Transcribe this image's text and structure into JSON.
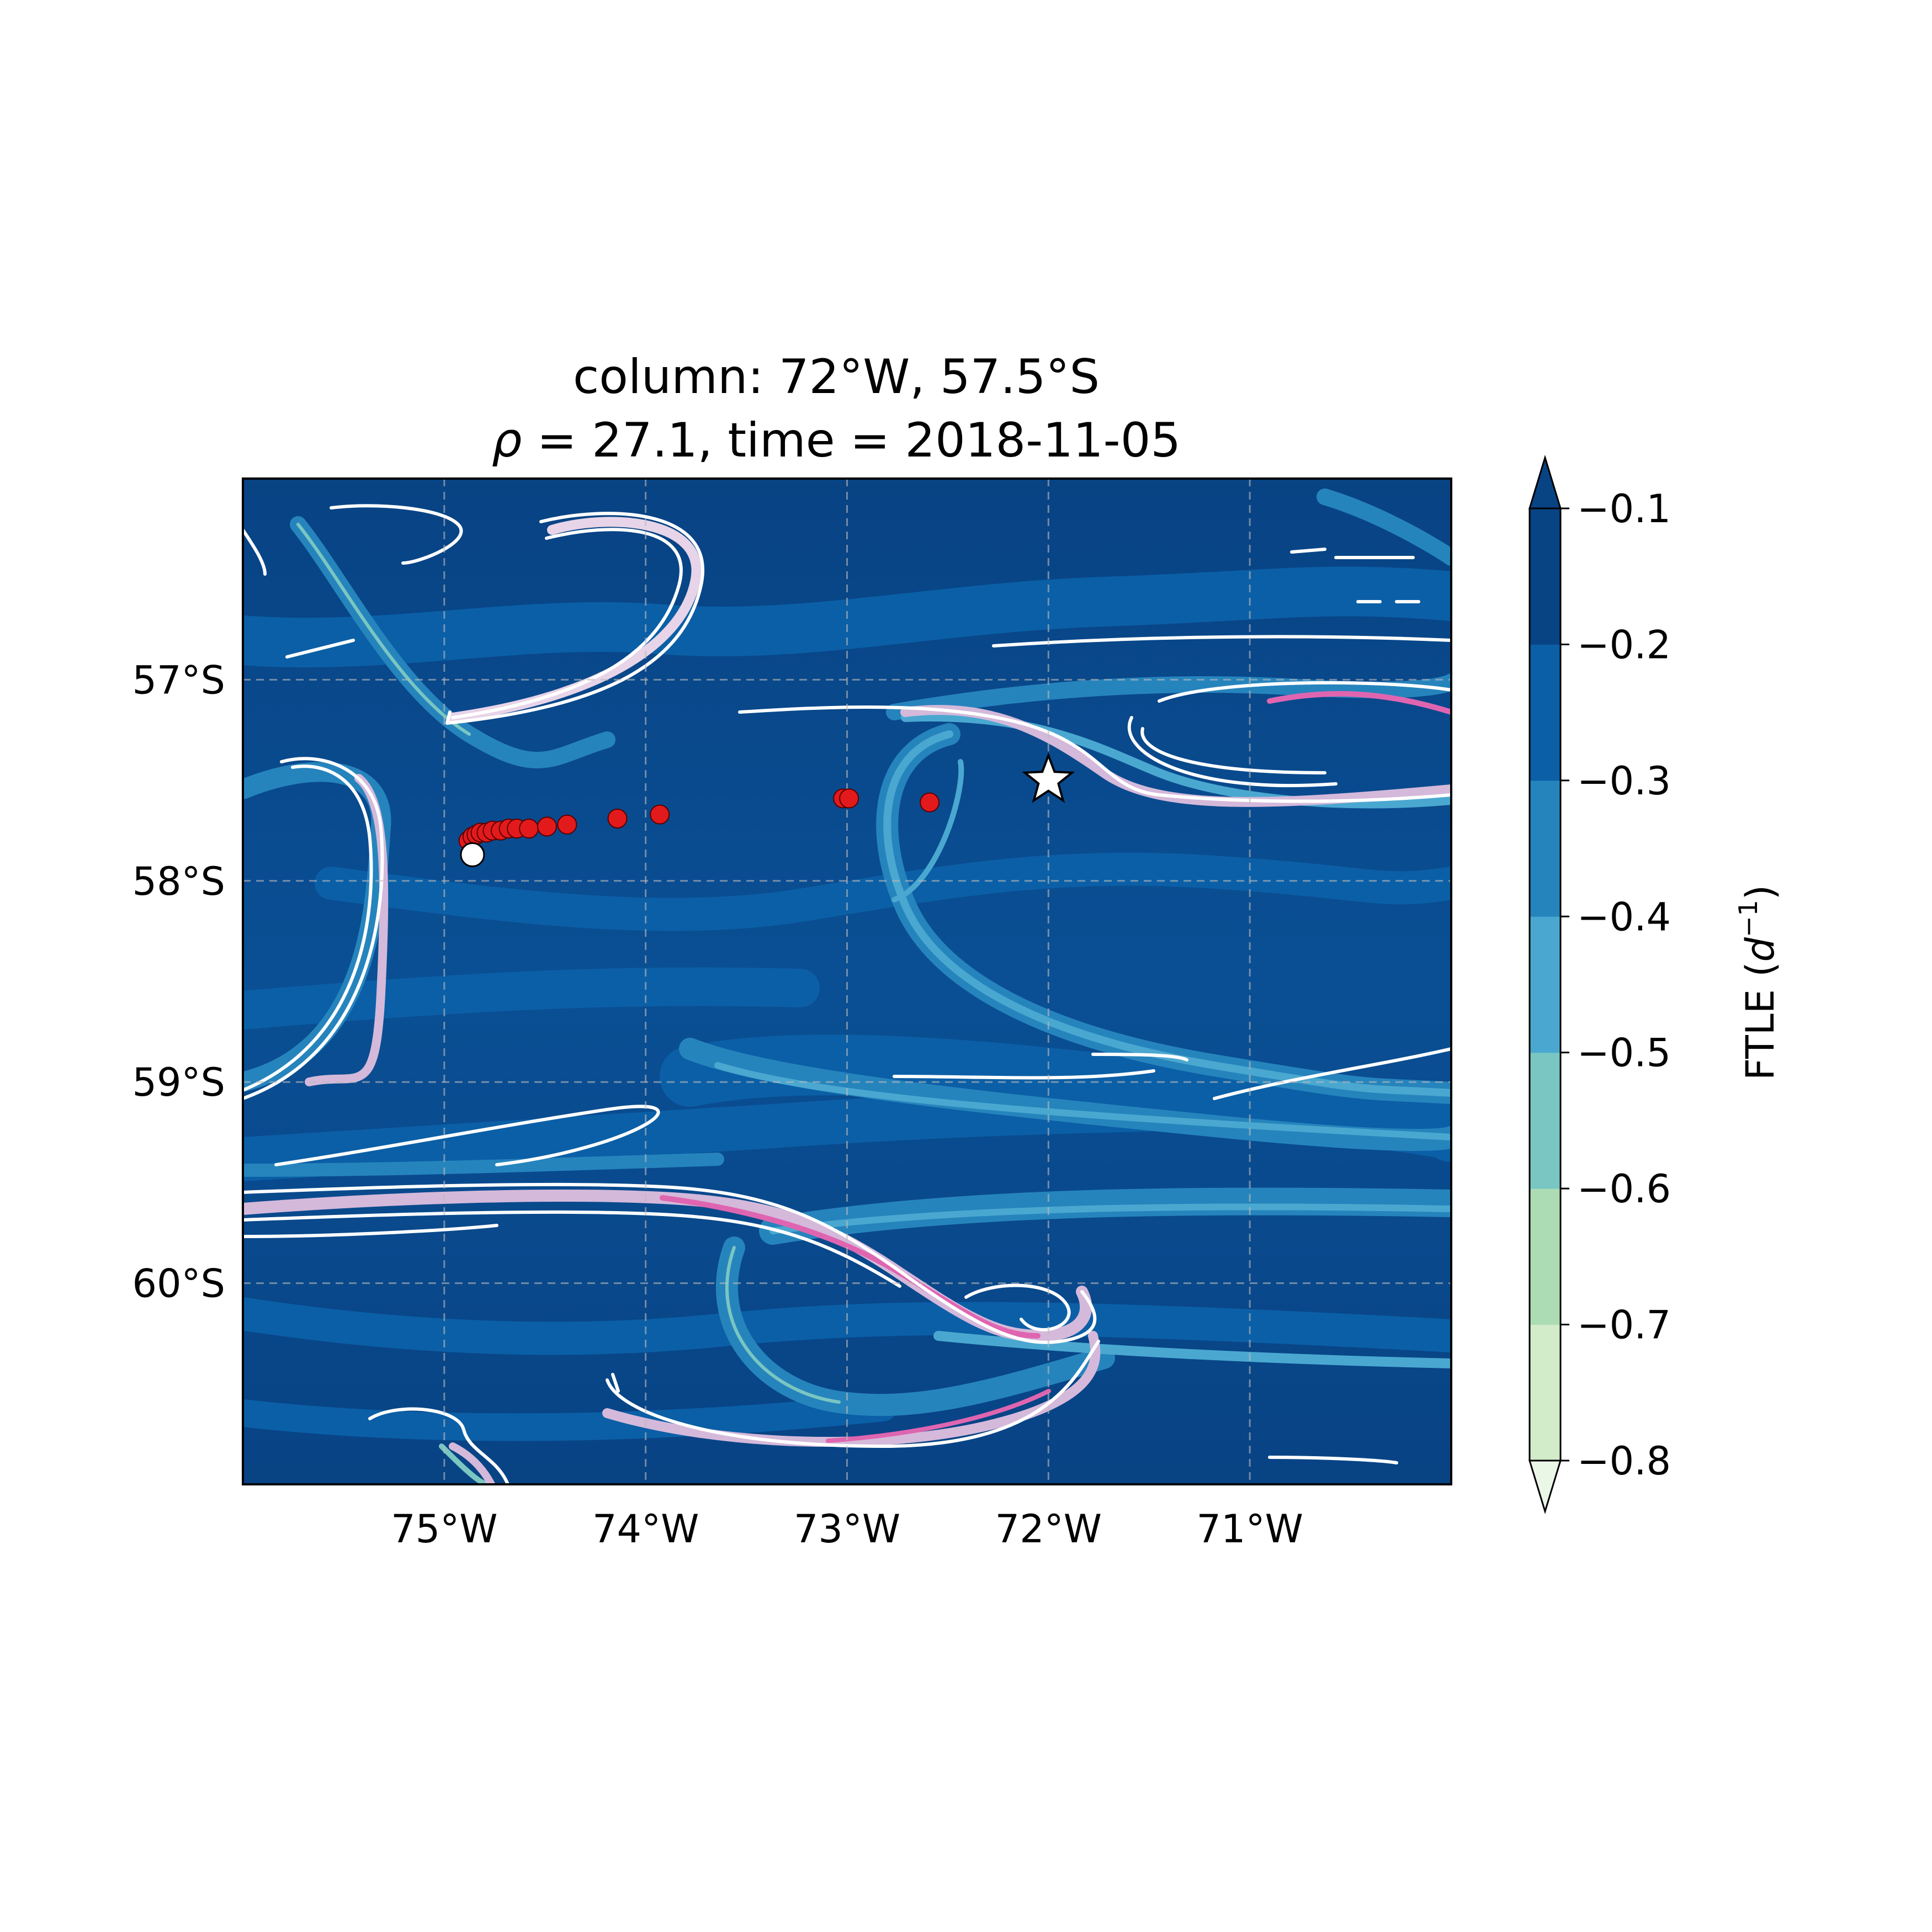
{
  "chart_data": {
    "type": "map",
    "title": {
      "line1": "column: 72°W, 57.5°S",
      "line2_symbol": "ρ",
      "line2_rest": " = 27.1, time = 2018-11-05"
    },
    "xlim": [
      -76.0,
      -70.0
    ],
    "ylim": [
      -61.0,
      -56.0
    ],
    "x_ticks": [
      {
        "value": -75,
        "label": "75°W"
      },
      {
        "value": -74,
        "label": "74°W"
      },
      {
        "value": -73,
        "label": "73°W"
      },
      {
        "value": -72,
        "label": "72°W"
      },
      {
        "value": -71,
        "label": "71°W"
      }
    ],
    "y_ticks": [
      {
        "value": -57,
        "label": "57°S"
      },
      {
        "value": -58,
        "label": "58°S"
      },
      {
        "value": -59,
        "label": "59°S"
      },
      {
        "value": -60,
        "label": "60°S"
      }
    ],
    "grid": true,
    "colorbar": {
      "label_main": "FTLE (",
      "label_var": "d",
      "label_exp": "−1",
      "label_close": ")",
      "levels": [
        -0.8,
        -0.7,
        -0.6,
        -0.5,
        -0.4,
        -0.3,
        -0.2,
        -0.1
      ],
      "tick_labels": [
        "−0.8",
        "−0.7",
        "−0.6",
        "−0.5",
        "−0.4",
        "−0.3",
        "−0.2",
        "−0.1"
      ],
      "colors": [
        "#eaf6e6",
        "#d2ecc9",
        "#acdcb4",
        "#79c6c2",
        "#4aa8d0",
        "#2684bd",
        "#0b5fa6",
        "#084384"
      ],
      "extend": "both"
    },
    "column_location": {
      "lon": -72.0,
      "lat": -57.5,
      "marker": "star",
      "color": "#ffffff"
    },
    "trajectory_start": {
      "lon": -74.86,
      "lat": -57.87,
      "color": "#ffffff"
    },
    "trajectory": [
      {
        "lon": -74.88,
        "lat": -57.8
      },
      {
        "lon": -74.86,
        "lat": -57.78
      },
      {
        "lon": -74.84,
        "lat": -57.77
      },
      {
        "lon": -74.82,
        "lat": -57.76
      },
      {
        "lon": -74.79,
        "lat": -57.76
      },
      {
        "lon": -74.76,
        "lat": -57.75
      },
      {
        "lon": -74.72,
        "lat": -57.75
      },
      {
        "lon": -74.68,
        "lat": -57.74
      },
      {
        "lon": -74.64,
        "lat": -57.74
      },
      {
        "lon": -74.58,
        "lat": -57.74
      },
      {
        "lon": -74.49,
        "lat": -57.73
      },
      {
        "lon": -74.39,
        "lat": -57.72
      },
      {
        "lon": -74.14,
        "lat": -57.69
      },
      {
        "lon": -73.93,
        "lat": -57.67
      },
      {
        "lon": -73.02,
        "lat": -57.59
      },
      {
        "lon": -72.99,
        "lat": -57.59
      },
      {
        "lon": -72.59,
        "lat": -57.61
      }
    ],
    "trajectory_color": "#e31a1c"
  }
}
